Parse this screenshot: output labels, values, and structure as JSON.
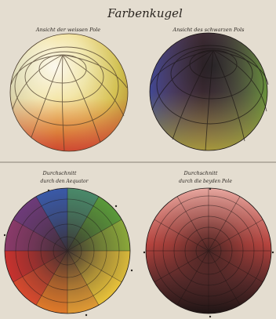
{
  "plate": {
    "title": "Farbenkugel",
    "top_left_caption": "Ansicht der weissen Pole",
    "top_right_caption": "Ansicht des schwarzen Pols",
    "bottom_left_caption": [
      "Durchschnitt",
      "durch den Aequator"
    ],
    "bottom_right_caption": [
      "Durchschnitt",
      "durch die beyden Pole"
    ]
  },
  "colors": {
    "paper": "#e4ddd0",
    "ink": "#2a2520",
    "yellow": "#e8c23a",
    "orange": "#e07a2a",
    "red": "#c8322e",
    "violet": "#6e3b7a",
    "blue": "#3a5aa8",
    "green": "#5a9a3a"
  }
}
